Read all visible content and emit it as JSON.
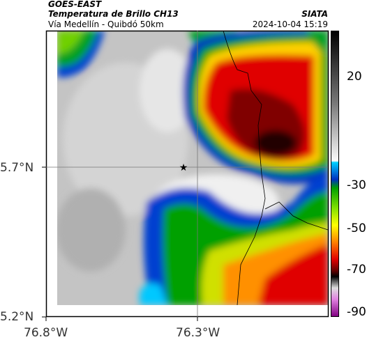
{
  "header": {
    "line1": "GOES-EAST",
    "line2": "Temperatura de Brillo CH13",
    "line3": "Vía Medellín - Quibdó 50km",
    "source": "SIATA",
    "datetime": "2024-10-04 15:19"
  },
  "map": {
    "lat_ticks": [
      "5.7°N",
      "5.2°N"
    ],
    "lon_ticks": [
      "76.8°W",
      "76.3°W"
    ]
  },
  "colorbar": {
    "ticks": [
      "20",
      "-30",
      "-50",
      "-70",
      "-90"
    ]
  }
}
